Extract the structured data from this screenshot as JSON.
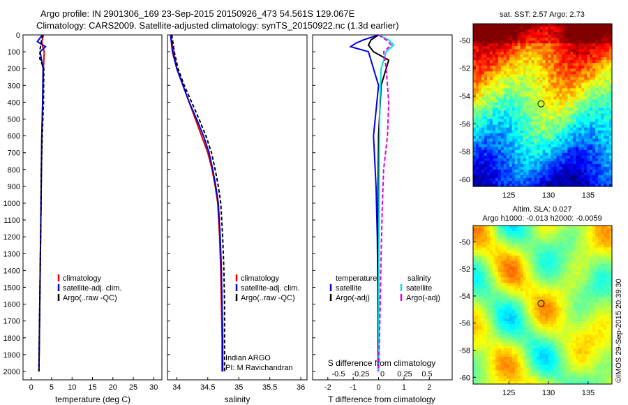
{
  "header": {
    "title_line1": "Argo profile: IN 2901306_169 23-Sep-2015 20150926_473 54.561S 129.067E",
    "title_line2": "Climatology: CARS2009. Satellite-adjusted climatology: synTS_20150922.nc (1.3d earlier)"
  },
  "colors": {
    "climatology": "#e00000",
    "satellite": "#0000e0",
    "argo": "#000000",
    "sal_satellite": "#00e0e0",
    "sal_argo": "#e000e0"
  },
  "chart_data": [
    {
      "type": "line",
      "name": "temperature-profile",
      "xlabel": "temperature (deg C)",
      "xticks": [
        0,
        5,
        10,
        15,
        20,
        25,
        30
      ],
      "yticks": [
        0,
        100,
        200,
        300,
        400,
        500,
        600,
        700,
        800,
        900,
        1000,
        1100,
        1200,
        1300,
        1400,
        1500,
        1600,
        1700,
        1800,
        1900,
        2000
      ],
      "xlim": [
        -2,
        32
      ],
      "ylim": [
        2050,
        0
      ],
      "legend": [
        "climatology",
        "satellite-adj. clim.",
        "Argo(..raw -QC)"
      ],
      "series": [
        {
          "name": "climatology",
          "x": [
            3.0,
            2.6,
            2.8,
            3.2,
            3.0,
            2.8,
            2.6,
            2.5,
            2.4,
            2.3,
            2.2,
            2.1,
            2.0,
            1.9
          ],
          "y": [
            0,
            40,
            70,
            100,
            200,
            400,
            600,
            800,
            1000,
            1200,
            1400,
            1600,
            1800,
            2000
          ]
        },
        {
          "name": "satellite-adj. clim.",
          "x": [
            2.7,
            1.5,
            3.5,
            2.2,
            2.9,
            2.8,
            2.6,
            2.5,
            2.4,
            2.3,
            2.2,
            2.1,
            2.0,
            1.9
          ],
          "y": [
            0,
            40,
            70,
            100,
            200,
            400,
            600,
            800,
            1000,
            1200,
            1400,
            1600,
            1800,
            2000
          ]
        },
        {
          "name": "Argo(..raw -QC)",
          "x": [
            2.8,
            2.5,
            2.2,
            2.1,
            3.1,
            3.0,
            2.7,
            2.5,
            2.4,
            2.3,
            2.2,
            2.1,
            2.0,
            1.9
          ],
          "y": [
            0,
            40,
            80,
            140,
            200,
            400,
            600,
            800,
            1000,
            1200,
            1400,
            1600,
            1800,
            2000
          ]
        }
      ]
    },
    {
      "type": "line",
      "name": "salinity-profile",
      "xlabel": "salinity",
      "xticks": [
        34,
        34.5,
        35,
        35.5,
        36
      ],
      "yticks": [
        0,
        100,
        200,
        300,
        400,
        500,
        600,
        700,
        800,
        900,
        1000,
        1100,
        1200,
        1300,
        1400,
        1500,
        1600,
        1700,
        1800,
        1900,
        2000
      ],
      "xlim": [
        33.85,
        36.1
      ],
      "ylim": [
        2050,
        0
      ],
      "legend": [
        "climatology",
        "satellite-adj. clim.",
        "Argo(..raw -QC)"
      ],
      "annotation": [
        "Indian ARGO",
        "PI: M Ravichandran"
      ],
      "series": [
        {
          "name": "climatology",
          "x": [
            33.9,
            33.95,
            34.0,
            34.1,
            34.2,
            34.3,
            34.4,
            34.5,
            34.57,
            34.62,
            34.66,
            34.69,
            34.71,
            34.72,
            34.73,
            34.73
          ],
          "y": [
            0,
            100,
            200,
            300,
            400,
            500,
            600,
            700,
            800,
            900,
            1000,
            1200,
            1400,
            1600,
            1800,
            2000
          ]
        },
        {
          "name": "satellite-adj. clim.",
          "x": [
            33.9,
            33.93,
            34.0,
            34.1,
            34.2,
            34.32,
            34.43,
            34.52,
            34.58,
            34.63,
            34.67,
            34.7,
            34.72,
            34.73,
            34.74,
            34.74
          ],
          "y": [
            0,
            100,
            200,
            300,
            400,
            500,
            600,
            700,
            800,
            900,
            1000,
            1200,
            1400,
            1600,
            1800,
            2000
          ]
        },
        {
          "name": "Argo(..raw -QC)",
          "x": [
            33.92,
            33.96,
            34.02,
            34.12,
            34.24,
            34.36,
            34.47,
            34.56,
            34.62,
            34.67,
            34.71,
            34.74,
            34.76,
            34.77,
            34.77,
            34.77
          ],
          "y": [
            0,
            100,
            200,
            300,
            400,
            500,
            600,
            700,
            800,
            900,
            1000,
            1200,
            1400,
            1600,
            1800,
            2000
          ]
        }
      ]
    },
    {
      "type": "line",
      "name": "difference-profile",
      "xlabel": "T difference from climatology",
      "xlabel_top": "S difference from climatology",
      "xticks": [
        -2,
        -1,
        0,
        1,
        2
      ],
      "xticks_top": [
        "-0.5",
        "-0.25",
        "0",
        "0.25",
        "0.5"
      ],
      "yticks": [
        0,
        100,
        200,
        300,
        400,
        500,
        600,
        700,
        800,
        900,
        1000,
        1100,
        1200,
        1300,
        1400,
        1500,
        1600,
        1700,
        1800,
        1900,
        2000
      ],
      "xlim": [
        -2.6,
        2.9
      ],
      "ylim": [
        2050,
        0
      ],
      "legend_headers": [
        "temperature",
        "salinity"
      ],
      "legend": [
        "satellite",
        "Argo(-adj)",
        "satellite",
        "Argo(-adj)"
      ],
      "series": [
        {
          "name": "temperature satellite",
          "x": [
            0.0,
            -0.6,
            -0.9,
            -1.1,
            -0.4,
            0.0,
            -0.2,
            -0.1,
            -0.05,
            -0.03,
            -0.02,
            -0.02,
            -0.01
          ],
          "y": [
            0,
            30,
            50,
            70,
            100,
            300,
            600,
            900,
            1200,
            1500,
            1700,
            1900,
            2000
          ]
        },
        {
          "name": "temperature Argo(-adj)",
          "x": [
            0.0,
            -0.3,
            -0.4,
            -0.2,
            0.4,
            0.1,
            0.0,
            -0.02,
            -0.02,
            -0.01,
            -0.01,
            -0.01,
            0.0
          ],
          "y": [
            0,
            30,
            60,
            100,
            150,
            300,
            600,
            900,
            1200,
            1500,
            1700,
            1900,
            2000
          ]
        },
        {
          "name": "salinity satellite",
          "x": [
            0.0,
            0.4,
            0.6,
            0.3,
            0.1,
            0.05,
            0.03,
            0.02,
            0.01,
            0.01,
            0.0
          ],
          "y": [
            0,
            30,
            60,
            100,
            200,
            400,
            700,
            1000,
            1400,
            1800,
            2000
          ]
        },
        {
          "name": "salinity Argo(-adj)",
          "x": [
            0.0,
            0.3,
            0.5,
            0.2,
            0.3,
            0.4,
            0.35,
            0.2,
            0.15,
            0.1,
            0.05,
            0.0
          ],
          "y": [
            0,
            30,
            60,
            100,
            200,
            400,
            600,
            800,
            1000,
            1300,
            1700,
            2000
          ]
        }
      ]
    },
    {
      "type": "heatmap",
      "name": "sst-map",
      "title": "sat. SST: 2.57 Argo: 2.73",
      "xticks": [
        125,
        130,
        135
      ],
      "yticks": [
        -50,
        -52,
        -54,
        -56,
        -58,
        -60
      ],
      "xlim": [
        120.5,
        138
      ],
      "ylim": [
        -60.5,
        -48.8
      ],
      "marker": {
        "lon": 129.067,
        "lat": -54.561
      }
    },
    {
      "type": "heatmap",
      "name": "sla-map",
      "title": "Altim. SLA: 0.027",
      "subtitle": "Argo h1000: -0.013 h2000: -0.0059",
      "xticks": [
        125,
        130,
        135
      ],
      "yticks": [
        -50,
        -52,
        -54,
        -56,
        -58,
        -60
      ],
      "xlim": [
        120.5,
        138
      ],
      "ylim": [
        -60.5,
        -48.8
      ],
      "marker": {
        "lon": 129.067,
        "lat": -54.561
      }
    }
  ],
  "footer": {
    "credit": "©IMOS 29-Sep-2015 20:39:30"
  }
}
